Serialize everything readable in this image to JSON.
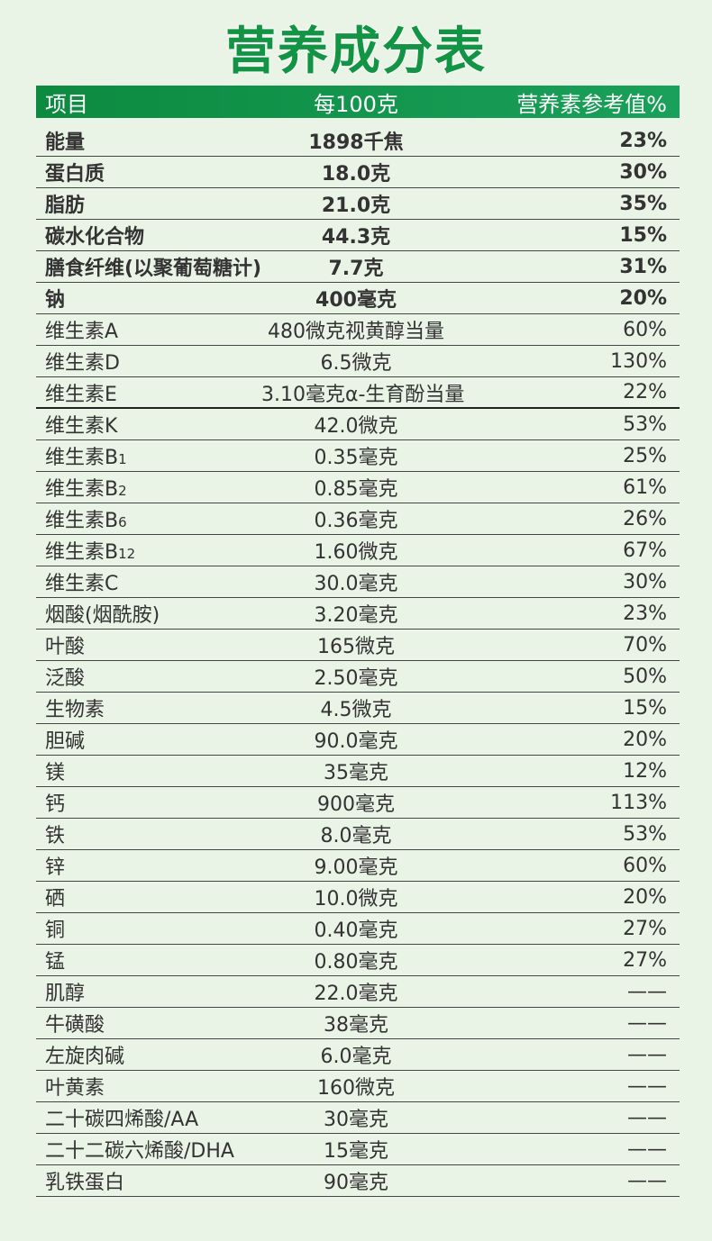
{
  "title": "营养成分表",
  "header": {
    "item": "项目",
    "per100": "每100克",
    "nrv": "营养素参考值%"
  },
  "rows": [
    {
      "name": "能量",
      "amount": "1898千焦",
      "nrv": "23%",
      "bold": true
    },
    {
      "name": "蛋白质",
      "amount": "18.0克",
      "nrv": "30%",
      "bold": true
    },
    {
      "name": "脂肪",
      "amount": "21.0克",
      "nrv": "35%",
      "bold": true
    },
    {
      "name": "碳水化合物",
      "amount": "44.3克",
      "nrv": "15%",
      "bold": true
    },
    {
      "name": "膳食纤维(以聚葡萄糖计)",
      "amount": "7.7克",
      "nrv": "31%",
      "bold": true
    },
    {
      "name": "钠",
      "amount": "400毫克",
      "nrv": "20%",
      "bold": true
    },
    {
      "name": "维生素A",
      "amount": "480微克视黄醇当量",
      "nrv": "60%"
    },
    {
      "name": "维生素D",
      "amount": "6.5微克",
      "nrv": "130%"
    },
    {
      "name": "维生素E",
      "amount": "3.10毫克α-生育酚当量",
      "nrv": "22%",
      "thick": true
    },
    {
      "name": "维生素K",
      "amount": "42.0微克",
      "nrv": "53%"
    },
    {
      "name": "维生素B",
      "sub": "1",
      "amount": "0.35毫克",
      "nrv": "25%"
    },
    {
      "name": "维生素B",
      "sub": "2",
      "amount": "0.85毫克",
      "nrv": "61%"
    },
    {
      "name": "维生素B",
      "sub": "6",
      "amount": "0.36毫克",
      "nrv": "26%"
    },
    {
      "name": "维生素B",
      "sub": "12",
      "amount": "1.60微克",
      "nrv": "67%"
    },
    {
      "name": "维生素C",
      "amount": "30.0毫克",
      "nrv": "30%"
    },
    {
      "name": "烟酸(烟酰胺)",
      "amount": "3.20毫克",
      "nrv": "23%"
    },
    {
      "name": "叶酸",
      "amount": "165微克",
      "nrv": "70%"
    },
    {
      "name": "泛酸",
      "amount": "2.50毫克",
      "nrv": "50%"
    },
    {
      "name": "生物素",
      "amount": "4.5微克",
      "nrv": "15%"
    },
    {
      "name": "胆碱",
      "amount": "90.0毫克",
      "nrv": "20%"
    },
    {
      "name": "镁",
      "amount": "35毫克",
      "nrv": "12%"
    },
    {
      "name": "钙",
      "amount": "900毫克",
      "nrv": "113%"
    },
    {
      "name": "铁",
      "amount": "8.0毫克",
      "nrv": "53%"
    },
    {
      "name": "锌",
      "amount": "9.00毫克",
      "nrv": "60%"
    },
    {
      "name": "硒",
      "amount": "10.0微克",
      "nrv": "20%"
    },
    {
      "name": "铜",
      "amount": "0.40毫克",
      "nrv": "27%"
    },
    {
      "name": "锰",
      "amount": "0.80毫克",
      "nrv": "27%"
    },
    {
      "name": "肌醇",
      "amount": "22.0毫克",
      "nrv": "——"
    },
    {
      "name": "牛磺酸",
      "amount": "38毫克",
      "nrv": "——"
    },
    {
      "name": "左旋肉碱",
      "amount": "6.0毫克",
      "nrv": "——"
    },
    {
      "name": "叶黄素",
      "amount": "160微克",
      "nrv": "——"
    },
    {
      "name": "二十碳四烯酸/AA",
      "amount": "30毫克",
      "nrv": "——"
    },
    {
      "name": "二十二碳六烯酸/DHA",
      "amount": "15毫克",
      "nrv": "——"
    },
    {
      "name": "乳铁蛋白",
      "amount": "90毫克",
      "nrv": "——"
    }
  ]
}
